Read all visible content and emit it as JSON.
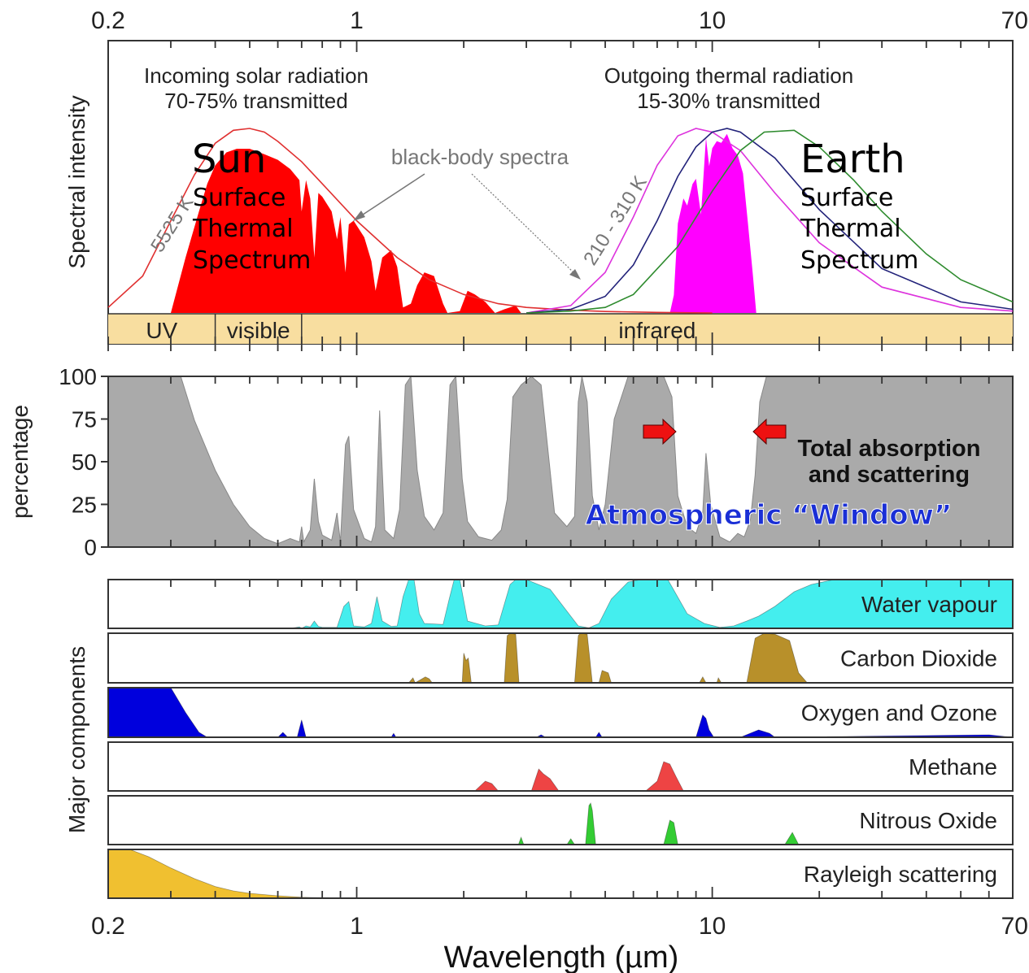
{
  "chart_data": {
    "type": "area",
    "x_scale": "log",
    "xlim": [
      0.2,
      70
    ],
    "xlabel": "Wavelength (µm)",
    "x_ticks": [
      {
        "value": 0.2,
        "label": "0.2"
      },
      {
        "value": 1,
        "label": "1"
      },
      {
        "value": 10,
        "label": "10"
      },
      {
        "value": 70,
        "label": "70"
      }
    ],
    "x_minor_ticks": [
      0.3,
      0.4,
      0.5,
      0.6,
      0.7,
      0.8,
      0.9,
      2,
      3,
      4,
      5,
      6,
      7,
      8,
      9,
      20,
      30,
      40,
      50,
      60
    ],
    "spectral_panel": {
      "ylabel": "Spectral intensity",
      "solar_caption": [
        "Incoming solar radiation",
        "70-75% transmitted"
      ],
      "thermal_caption": [
        "Outgoing thermal radiation",
        "15-30% transmitted"
      ],
      "blackbody_label": "black-body spectra",
      "sun_curve_label": "5525 K",
      "earth_curve_label": "210 - 310 K",
      "sun_title": "Sun",
      "sun_subtitle": [
        "Surface",
        "Thermal",
        "Spectrum"
      ],
      "earth_title": "Earth",
      "earth_subtitle": [
        "Surface",
        "Thermal",
        "Spectrum"
      ],
      "bands": [
        {
          "name": "UV",
          "from": 0.2,
          "to": 0.4
        },
        {
          "name": "visible",
          "from": 0.4,
          "to": 0.7
        },
        {
          "name": "infrared",
          "from": 0.7,
          "to": 70
        }
      ],
      "series": [
        {
          "temperature_k": 5525,
          "color": "#e03030",
          "x": [
            0.2,
            0.25,
            0.3,
            0.35,
            0.4,
            0.45,
            0.5,
            0.55,
            0.6,
            0.7,
            0.8,
            1,
            1.3,
            1.6,
            2,
            2.5,
            3,
            4,
            5,
            7,
            10
          ],
          "y": [
            0.03,
            0.2,
            0.5,
            0.75,
            0.92,
            0.99,
            1.0,
            0.98,
            0.93,
            0.82,
            0.7,
            0.5,
            0.3,
            0.18,
            0.1,
            0.05,
            0.03,
            0.015,
            0.008,
            0.003,
            0.0
          ]
        },
        {
          "temperature_k": 210,
          "color": "#dd33dd",
          "x": [
            3,
            4,
            5,
            6,
            7,
            8,
            9,
            10,
            12,
            15,
            20,
            30,
            50,
            70
          ],
          "y": [
            0.0,
            0.04,
            0.22,
            0.52,
            0.8,
            0.96,
            1.0,
            0.98,
            0.88,
            0.65,
            0.38,
            0.14,
            0.03,
            0.01
          ]
        },
        {
          "temperature_k": 260,
          "color": "#22227a",
          "x": [
            3,
            4,
            5,
            6,
            7,
            8,
            9,
            10,
            11,
            12,
            15,
            20,
            30,
            50,
            70
          ],
          "y": [
            0.0,
            0.02,
            0.09,
            0.26,
            0.5,
            0.74,
            0.9,
            0.98,
            1.0,
            0.98,
            0.84,
            0.56,
            0.24,
            0.06,
            0.02
          ]
        },
        {
          "temperature_k": 310,
          "color": "#2e8b2e",
          "x": [
            3,
            4,
            5,
            6,
            8,
            10,
            12,
            14,
            17,
            20,
            25,
            30,
            40,
            50,
            70
          ],
          "y": [
            0.0,
            0.01,
            0.03,
            0.1,
            0.36,
            0.66,
            0.88,
            0.98,
            0.99,
            0.9,
            0.72,
            0.55,
            0.32,
            0.18,
            0.06
          ]
        }
      ],
      "transmitted_sun": {
        "color": "#ff0000",
        "x": [
          0.3,
          0.33,
          0.36,
          0.38,
          0.4,
          0.43,
          0.46,
          0.5,
          0.55,
          0.6,
          0.65,
          0.69,
          0.7,
          0.72,
          0.74,
          0.76,
          0.78,
          0.8,
          0.85,
          0.88,
          0.9,
          0.93,
          0.95,
          0.98,
          1.05,
          1.1,
          1.13,
          1.18,
          1.25,
          1.3,
          1.35,
          1.42,
          1.48,
          1.55,
          1.65,
          1.75,
          1.8,
          1.95,
          2.05,
          2.15,
          2.3,
          2.45,
          2.6,
          2.8,
          2.9
        ],
        "y": [
          0,
          0.3,
          0.55,
          0.7,
          0.8,
          0.87,
          0.89,
          0.89,
          0.86,
          0.83,
          0.78,
          0.72,
          0.55,
          0.72,
          0.62,
          0.3,
          0.65,
          0.63,
          0.55,
          0.4,
          0.52,
          0.22,
          0.48,
          0.5,
          0.41,
          0.28,
          0.12,
          0.3,
          0.34,
          0.25,
          0.03,
          0.05,
          0.15,
          0.22,
          0.2,
          0.05,
          0.0,
          0.01,
          0.12,
          0.1,
          0.06,
          0.0,
          0.02,
          0.04,
          0.0
        ]
      },
      "transmitted_earth": {
        "color": "#ff00ff",
        "x": [
          7.6,
          7.8,
          8.0,
          8.3,
          8.5,
          8.8,
          9.0,
          9.3,
          9.6,
          9.8,
          10.0,
          10.3,
          10.6,
          11.0,
          11.4,
          11.8,
          12.2,
          12.6,
          13.0,
          13.3
        ],
        "y": [
          0.0,
          0.1,
          0.5,
          0.64,
          0.6,
          0.72,
          0.75,
          0.55,
          0.98,
          0.82,
          0.92,
          0.96,
          0.95,
          1.0,
          0.92,
          0.88,
          0.78,
          0.5,
          0.22,
          0.0
        ]
      }
    },
    "absorption_panel": {
      "ylabel": "percentage",
      "ylim": [
        0,
        100
      ],
      "y_ticks": [
        0,
        25,
        50,
        75,
        100
      ],
      "label": [
        "Total absorption",
        "and scattering"
      ],
      "window_label": "Atmospheric “Window”",
      "color": "#aaaaaa",
      "x": [
        0.2,
        0.3,
        0.32,
        0.35,
        0.4,
        0.45,
        0.5,
        0.55,
        0.6,
        0.65,
        0.69,
        0.7,
        0.71,
        0.74,
        0.76,
        0.78,
        0.8,
        0.85,
        0.88,
        0.9,
        0.93,
        0.95,
        0.98,
        1.05,
        1.1,
        1.13,
        1.16,
        1.2,
        1.27,
        1.32,
        1.37,
        1.42,
        1.48,
        1.55,
        1.65,
        1.75,
        1.83,
        1.9,
        1.98,
        2.05,
        2.2,
        2.4,
        2.55,
        2.65,
        2.75,
        2.9,
        3.1,
        3.3,
        3.6,
        3.9,
        4.1,
        4.2,
        4.3,
        4.45,
        4.6,
        4.8,
        5.0,
        5.3,
        5.8,
        6.5,
        7.3,
        7.7,
        8.0,
        8.5,
        9.0,
        9.4,
        9.6,
        9.9,
        10.5,
        11.2,
        11.8,
        12.3,
        12.8,
        13.2,
        13.6,
        14.2,
        16,
        18,
        20,
        25,
        70
      ],
      "y": [
        100,
        100,
        100,
        74,
        45,
        25,
        12,
        5,
        2,
        5,
        3,
        12,
        3,
        10,
        40,
        15,
        7,
        4,
        20,
        3,
        60,
        65,
        22,
        5,
        3,
        12,
        80,
        10,
        5,
        22,
        95,
        100,
        45,
        18,
        10,
        20,
        95,
        100,
        40,
        15,
        6,
        4,
        10,
        28,
        88,
        95,
        100,
        95,
        20,
        12,
        18,
        85,
        100,
        85,
        30,
        10,
        25,
        75,
        100,
        100,
        100,
        88,
        30,
        12,
        8,
        20,
        55,
        25,
        6,
        3,
        8,
        6,
        16,
        42,
        85,
        100,
        100,
        100,
        100,
        100,
        100
      ]
    },
    "components": [
      {
        "name": "Water vapour",
        "color": "#44eeee",
        "x": [
          0.2,
          0.65,
          0.69,
          0.7,
          0.72,
          0.74,
          0.76,
          0.78,
          0.8,
          0.88,
          0.92,
          0.95,
          0.98,
          1.05,
          1.1,
          1.14,
          1.18,
          1.25,
          1.3,
          1.35,
          1.4,
          1.45,
          1.5,
          1.55,
          1.75,
          1.82,
          1.88,
          1.95,
          2.05,
          2.3,
          2.5,
          2.7,
          2.8,
          3.0,
          3.5,
          4.2,
          4.5,
          4.8,
          5.2,
          5.8,
          6.3,
          7.5,
          8.5,
          9.5,
          10.5,
          11.5,
          12.5,
          13.5,
          15,
          17,
          19,
          22,
          70
        ],
        "y": [
          0,
          0,
          3,
          0,
          5,
          3,
          15,
          4,
          2,
          2,
          45,
          55,
          5,
          3,
          10,
          65,
          15,
          4,
          5,
          65,
          100,
          100,
          30,
          10,
          8,
          60,
          100,
          100,
          15,
          5,
          7,
          90,
          100,
          100,
          80,
          5,
          1,
          10,
          60,
          95,
          100,
          100,
          30,
          10,
          2,
          5,
          15,
          25,
          45,
          75,
          90,
          100,
          100
        ]
      },
      {
        "name": "Carbon Dioxide",
        "color": "#b8902a",
        "x": [
          0.2,
          1.4,
          1.44,
          1.46,
          1.56,
          1.6,
          1.63,
          1.98,
          2.0,
          2.03,
          2.06,
          2.1,
          2.6,
          2.65,
          2.7,
          2.8,
          2.86,
          4.1,
          4.2,
          4.25,
          4.45,
          4.6,
          4.8,
          4.9,
          5.1,
          5.2,
          9.2,
          9.4,
          9.6,
          10.3,
          10.4,
          10.6,
          12.5,
          13.2,
          14,
          15,
          16.5,
          17.5,
          18.5,
          70
        ],
        "y": [
          0,
          0,
          10,
          0,
          12,
          8,
          0,
          0,
          60,
          45,
          50,
          0,
          0,
          95,
          100,
          98,
          0,
          0,
          95,
          100,
          98,
          0,
          0,
          25,
          20,
          0,
          0,
          12,
          0,
          0,
          10,
          0,
          0,
          90,
          100,
          98,
          85,
          20,
          0,
          0
        ]
      },
      {
        "name": "Oxygen and Ozone",
        "color": "#0000dd",
        "x": [
          0.2,
          0.3,
          0.33,
          0.36,
          0.38,
          0.6,
          0.62,
          0.64,
          0.68,
          0.7,
          0.72,
          1.25,
          1.27,
          1.29,
          3.2,
          3.3,
          3.4,
          4.7,
          4.8,
          4.9,
          9.0,
          9.4,
          9.6,
          9.8,
          10.1,
          12.0,
          13.5,
          14.5,
          15,
          60,
          70
        ],
        "y": [
          100,
          100,
          50,
          10,
          0,
          0,
          10,
          0,
          0,
          35,
          0,
          0,
          8,
          0,
          0,
          5,
          0,
          0,
          10,
          0,
          0,
          45,
          38,
          15,
          0,
          0,
          15,
          8,
          0,
          5,
          0
        ]
      },
      {
        "name": "Methane",
        "color": "#ee4444",
        "x": [
          0.2,
          2.15,
          2.3,
          2.4,
          2.5,
          3.1,
          3.25,
          3.35,
          3.5,
          3.7,
          3.8,
          6.5,
          7.0,
          7.3,
          7.6,
          7.9,
          8.3,
          70
        ],
        "y": [
          0,
          0,
          20,
          15,
          0,
          0,
          45,
          35,
          25,
          0,
          0,
          0,
          20,
          60,
          55,
          30,
          0,
          0
        ]
      },
      {
        "name": "Nitrous Oxide",
        "color": "#33cc33",
        "x": [
          0.2,
          2.85,
          2.9,
          2.95,
          3.9,
          4.0,
          4.1,
          4.4,
          4.5,
          4.55,
          4.6,
          4.7,
          7.3,
          7.6,
          7.8,
          8.0,
          8.5,
          16.0,
          16.8,
          17.5,
          70
        ],
        "y": [
          0,
          0,
          15,
          0,
          0,
          12,
          0,
          0,
          80,
          85,
          70,
          0,
          0,
          50,
          45,
          0,
          0,
          0,
          25,
          0,
          0
        ]
      },
      {
        "name": "Rayleigh scattering",
        "color": "#f0c030",
        "x": [
          0.2,
          0.23,
          0.26,
          0.3,
          0.35,
          0.4,
          0.45,
          0.5,
          0.6,
          0.7,
          0.85,
          1.0
        ],
        "y": [
          100,
          100,
          85,
          62,
          40,
          24,
          15,
          10,
          5,
          2,
          1,
          0
        ]
      }
    ]
  }
}
